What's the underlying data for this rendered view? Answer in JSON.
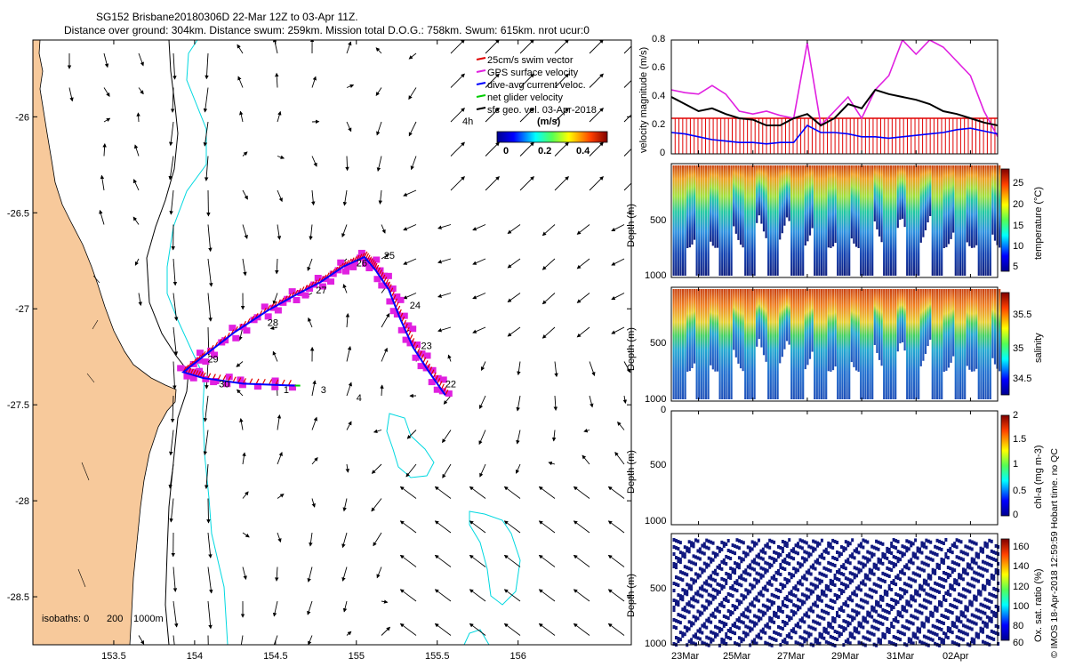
{
  "title": {
    "line1": "SG152 Brisbane20180306D 22-Mar 12Z to 03-Apr 11Z.",
    "line2": "Distance over ground: 304km. Distance swum: 259km. Mission total D.O.G.: 758km. Swum: 615km. nrot ucur:0"
  },
  "colors": {
    "land": "#f7c99b",
    "swim_vector": "#e00000",
    "gps_velocity": "#e020e0",
    "dive_avg": "#0000ff",
    "net_glider": "#00cc00",
    "coast_isobath": "#000000",
    "isobath_1000": "#00d8e0"
  },
  "map": {
    "x_ticks": [
      "153.5",
      "154",
      "154.5",
      "155",
      "155.5",
      "156"
    ],
    "y_ticks": [
      "-26",
      "-26.5",
      "-27",
      "-27.5",
      "-28",
      "-28.5"
    ],
    "x_range": [
      153.0,
      156.7
    ],
    "y_range": [
      -28.75,
      -25.6
    ],
    "isobaths_label": "isobaths: 0",
    "isobath_values": [
      "200",
      "1000m"
    ],
    "legend": [
      {
        "label": "25cm/s swim vector",
        "color": "#e00000"
      },
      {
        "label": "GPS surface velocity",
        "color": "#e020e0"
      },
      {
        "label": "dive-avg current veloc.",
        "color": "#0000ff"
      },
      {
        "label": "net glider velocity",
        "color": "#00cc00"
      },
      {
        "label": "sfc geo. vel. 03-Apr-2018",
        "color": "#000000"
      }
    ],
    "legend_extra": "4h",
    "colorbar_unit": "(m/s)",
    "colorbar_ticks": [
      "0",
      "0.2",
      "0.4"
    ],
    "day_labels": [
      {
        "text": "22",
        "lon": 155.55,
        "lat": -27.41
      },
      {
        "text": "23",
        "lon": 155.4,
        "lat": -27.21
      },
      {
        "text": "24",
        "lon": 155.33,
        "lat": -27.0
      },
      {
        "text": "25",
        "lon": 155.17,
        "lat": -26.74
      },
      {
        "text": "26",
        "lon": 155.0,
        "lat": -26.78
      },
      {
        "text": "27",
        "lon": 154.75,
        "lat": -26.92
      },
      {
        "text": "28",
        "lon": 154.45,
        "lat": -27.09
      },
      {
        "text": "29",
        "lon": 154.08,
        "lat": -27.28
      },
      {
        "text": "30",
        "lon": 154.15,
        "lat": -27.41
      },
      {
        "text": "1",
        "lon": 154.55,
        "lat": -27.44
      },
      {
        "text": "3",
        "lon": 154.78,
        "lat": -27.44
      },
      {
        "text": "4",
        "lon": 155.0,
        "lat": -27.48
      }
    ],
    "track": [
      [
        155.55,
        -27.45
      ],
      [
        155.45,
        -27.33
      ],
      [
        155.35,
        -27.2
      ],
      [
        155.27,
        -27.05
      ],
      [
        155.2,
        -26.9
      ],
      [
        155.12,
        -26.8
      ],
      [
        155.05,
        -26.73
      ],
      [
        154.92,
        -26.78
      ],
      [
        154.78,
        -26.86
      ],
      [
        154.62,
        -26.93
      ],
      [
        154.45,
        -27.01
      ],
      [
        154.25,
        -27.12
      ],
      [
        154.05,
        -27.25
      ],
      [
        153.93,
        -27.33
      ],
      [
        154.05,
        -27.36
      ],
      [
        154.3,
        -27.39
      ],
      [
        154.62,
        -27.4
      ]
    ]
  },
  "time_axis": {
    "ticks": [
      "23Mar",
      "25Mar",
      "27Mar",
      "29Mar",
      "31Mar",
      "02Apr"
    ],
    "tick_days": [
      1,
      3,
      5,
      7,
      9,
      11
    ],
    "range_days": [
      0,
      12
    ]
  },
  "panels": {
    "velocity": {
      "ylabel": "velocity magnitude (m/s)",
      "yticks": [
        "0",
        "0.2",
        "0.4",
        "0.6",
        "0.8"
      ],
      "ylim": [
        0,
        0.8
      ],
      "swim_level": 0.25
    },
    "temperature": {
      "ylabel": "Depth (m)",
      "yticks": [
        "500",
        "1000"
      ],
      "cbar_label": "temperature (°C)",
      "cbar_ticks": [
        "25",
        "20",
        "15",
        "10",
        "5"
      ],
      "cbar_range": [
        4,
        28
      ]
    },
    "salinity": {
      "ylabel": "Depth (m)",
      "yticks": [
        "500",
        "1000"
      ],
      "cbar_label": "salinity",
      "cbar_ticks": [
        "35.5",
        "35",
        "34.5"
      ],
      "cbar_range": [
        34.3,
        35.9
      ]
    },
    "chla": {
      "ylabel": "Depth (m)",
      "yticks": [
        "0",
        "500",
        "1000"
      ],
      "cbar_label": "chl-a (mg m-3)",
      "cbar_ticks": [
        "2",
        "1.5",
        "1",
        "0.5",
        "0"
      ],
      "cbar_range": [
        0,
        2
      ]
    },
    "oxsat": {
      "ylabel": "Depth (m)",
      "yticks": [
        "500",
        "1000"
      ],
      "cbar_label": "Ox. sat. ratio (%)",
      "cbar_ticks": [
        "160",
        "140",
        "120",
        "100",
        "80",
        "60"
      ],
      "cbar_range": [
        60,
        170
      ]
    }
  },
  "footer": "© IMOS 18-Apr-2018 12:59:59 Hobart time. no QC",
  "chart_data": [
    {
      "type": "scatter",
      "title": "SG152 Brisbane20180306D 22-Mar 12Z to 03-Apr 11Z.",
      "subtitle": "Distance over ground: 304km. Distance swum: 259km. Mission total D.O.G.: 758km. Swum: 615km. nrot ucur:0",
      "x_label": "",
      "y_label": "",
      "x_range": [
        153.0,
        156.7
      ],
      "y_range": [
        -28.75,
        -25.6
      ],
      "series": [
        {
          "name": "dive-avg current veloc.",
          "x": [
            155.55,
            155.35,
            155.2,
            155.05,
            154.78,
            154.45,
            154.05,
            153.93,
            154.3,
            154.62
          ],
          "y": [
            -27.45,
            -27.2,
            -26.9,
            -26.73,
            -26.86,
            -27.01,
            -27.25,
            -27.33,
            -27.39,
            -27.4
          ]
        }
      ]
    },
    {
      "type": "line",
      "y_label": "velocity magnitude (m/s)",
      "ylim": [
        0,
        0.8
      ],
      "x": [
        0,
        0.5,
        1,
        1.5,
        2,
        2.5,
        3,
        3.5,
        4,
        4.5,
        5,
        5.5,
        6,
        6.5,
        7,
        7.5,
        8,
        8.5,
        9,
        9.5,
        10,
        10.5,
        11,
        11.5,
        12
      ],
      "series": [
        {
          "name": "GPS surface velocity",
          "values": [
            0.45,
            0.43,
            0.42,
            0.48,
            0.42,
            0.3,
            0.28,
            0.3,
            0.27,
            0.25,
            0.78,
            0.2,
            0.3,
            0.4,
            0.25,
            0.45,
            0.55,
            0.8,
            0.7,
            0.8,
            0.75,
            0.65,
            0.55,
            0.3,
            0.12
          ]
        },
        {
          "name": "net glider velocity",
          "values": [
            0.4,
            0.35,
            0.3,
            0.32,
            0.28,
            0.25,
            0.24,
            0.2,
            0.2,
            0.25,
            0.28,
            0.2,
            0.25,
            0.35,
            0.32,
            0.45,
            0.42,
            0.4,
            0.38,
            0.35,
            0.3,
            0.28,
            0.25,
            0.22,
            0.2
          ]
        },
        {
          "name": "dive-avg current veloc.",
          "values": [
            0.15,
            0.14,
            0.12,
            0.1,
            0.09,
            0.08,
            0.08,
            0.07,
            0.08,
            0.08,
            0.2,
            0.15,
            0.15,
            0.14,
            0.12,
            0.12,
            0.11,
            0.12,
            0.13,
            0.14,
            0.15,
            0.17,
            0.18,
            0.16,
            0.14
          ]
        }
      ]
    }
  ]
}
